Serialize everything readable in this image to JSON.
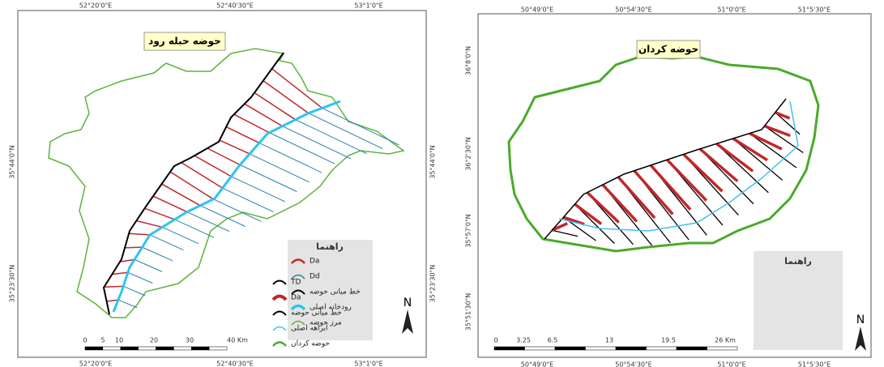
{
  "panels": [
    {
      "title": "حوضه حبله رود",
      "top_labels": [
        "52°20'0\"E",
        "52°40'30\"E",
        "53°1'0\"E"
      ],
      "bottom_labels": [
        "52°20'0\"E",
        "52°40'30\"E",
        "53°1'0\"E"
      ],
      "left_labels": [
        "35°44'0\"N",
        "35°23'30\"N"
      ],
      "right_labels": [
        "35°44'0\"N",
        "35°23'30\"N"
      ],
      "legend": {
        "title": "راهنما",
        "items": [
          "Da",
          "Dd",
          "خط میانی حوضه",
          "رودخانه اصلی",
          "مرز حوضه"
        ]
      },
      "scale_labels": [
        "0",
        "5",
        "10",
        "20",
        "30",
        "40 Km"
      ],
      "north": "N"
    },
    {
      "title": "حوضه کردان",
      "top_labels": [
        "50°49'0\"E",
        "50°54'30\"E",
        "51°0'0\"E",
        "51°5'30\"E"
      ],
      "bottom_labels": [
        "50°49'0\"E",
        "50°54'30\"E",
        "51°0'0\"E",
        "51°5'30\"E"
      ],
      "left_labels": [
        "36°8'0\"N",
        "36°2'30\"N",
        "35°57'0\"N",
        "35°51'30\"N"
      ],
      "right_labels": [],
      "legend": {
        "title": "راهنما",
        "items": [
          "TD",
          "Da",
          "خط میانی حوضه",
          "آبراهه اصلی",
          "حوضه کردان"
        ]
      },
      "scale_labels": [
        "0",
        "3.25",
        "6.5",
        "13",
        "19.5",
        "26 Km"
      ],
      "north": "N"
    }
  ]
}
